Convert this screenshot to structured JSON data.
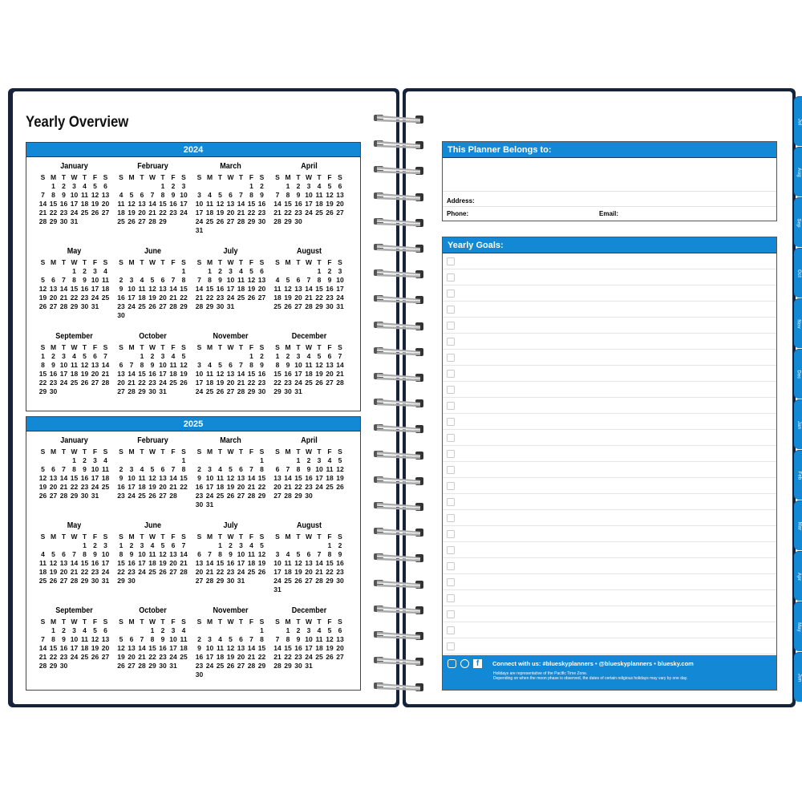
{
  "left_page": {
    "title": "Yearly Overview",
    "weekday_labels": [
      "S",
      "M",
      "T",
      "W",
      "T",
      "F",
      "S"
    ],
    "years": [
      {
        "year": "2024",
        "months": [
          {
            "name": "January",
            "first_weekday": 1,
            "days": 31
          },
          {
            "name": "February",
            "first_weekday": 4,
            "days": 29
          },
          {
            "name": "March",
            "first_weekday": 5,
            "days": 31
          },
          {
            "name": "April",
            "first_weekday": 1,
            "days": 30
          },
          {
            "name": "May",
            "first_weekday": 3,
            "days": 31
          },
          {
            "name": "June",
            "first_weekday": 6,
            "days": 30
          },
          {
            "name": "July",
            "first_weekday": 1,
            "days": 31
          },
          {
            "name": "August",
            "first_weekday": 4,
            "days": 31
          },
          {
            "name": "September",
            "first_weekday": 0,
            "days": 30
          },
          {
            "name": "October",
            "first_weekday": 2,
            "days": 31
          },
          {
            "name": "November",
            "first_weekday": 5,
            "days": 30
          },
          {
            "name": "December",
            "first_weekday": 0,
            "days": 31
          }
        ]
      },
      {
        "year": "2025",
        "months": [
          {
            "name": "January",
            "first_weekday": 3,
            "days": 31
          },
          {
            "name": "February",
            "first_weekday": 6,
            "days": 28
          },
          {
            "name": "March",
            "first_weekday": 6,
            "days": 31
          },
          {
            "name": "April",
            "first_weekday": 2,
            "days": 30
          },
          {
            "name": "May",
            "first_weekday": 4,
            "days": 31
          },
          {
            "name": "June",
            "first_weekday": 0,
            "days": 30
          },
          {
            "name": "July",
            "first_weekday": 2,
            "days": 31
          },
          {
            "name": "August",
            "first_weekday": 5,
            "days": 31
          },
          {
            "name": "September",
            "first_weekday": 1,
            "days": 30
          },
          {
            "name": "October",
            "first_weekday": 3,
            "days": 31
          },
          {
            "name": "November",
            "first_weekday": 6,
            "days": 30
          },
          {
            "name": "December",
            "first_weekday": 1,
            "days": 31
          }
        ]
      }
    ]
  },
  "right_page": {
    "owner": {
      "title": "This Planner Belongs to:",
      "address_label": "Address:",
      "phone_label": "Phone:",
      "email_label": "Email:"
    },
    "goals": {
      "title": "Yearly Goals:",
      "row_count": 25
    },
    "footer": {
      "icons": [
        "instagram-icon",
        "pinterest-icon",
        "facebook-icon"
      ],
      "connect": "Connect with us: #blueskyplanners • @blueskyplanners • bluesky.com",
      "note1": "Holidays are representative of the Pacific Time Zone.",
      "note2": "Depending on when the moon phase is observed, the dates of certain religious holidays may vary by one day."
    }
  },
  "tabs": [
    "Jul",
    "Aug",
    "Sep",
    "Oct",
    "Nov",
    "Dec",
    "Jan",
    "Feb",
    "Mar",
    "Apr",
    "May",
    "Jun"
  ],
  "colors": {
    "accent": "#1388d4",
    "cover": "#17223b"
  }
}
